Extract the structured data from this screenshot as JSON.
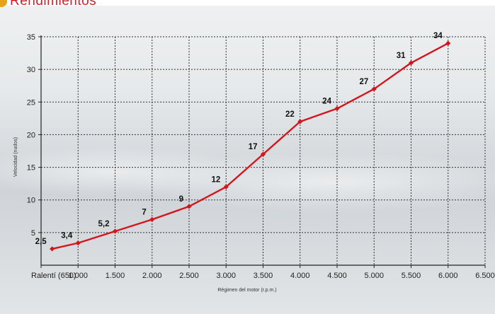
{
  "header": {
    "title": "Rendimientos",
    "icon": "orange-circle-icon",
    "title_color": "#c9242b",
    "icon_color": "#e8a21a"
  },
  "chart_data": {
    "type": "line",
    "title": "Rendimientos",
    "xlabel": "Régimen del motor (r.p.m.)",
    "ylabel": "Velocidad (nudos)",
    "x_tick_labels": [
      "Ralentí (650)",
      "1.000",
      "1.500",
      "2.000",
      "2.500",
      "3.000",
      "3.500",
      "4.000",
      "4.500",
      "5.000",
      "5.500",
      "6.000",
      "6.500"
    ],
    "x_tick_values": [
      500,
      1000,
      1500,
      2000,
      2500,
      3000,
      3500,
      4000,
      4500,
      5000,
      5500,
      6000,
      6500
    ],
    "y_ticks": [
      5,
      10,
      15,
      20,
      25,
      30,
      35
    ],
    "xlim": [
      500,
      6500
    ],
    "ylim": [
      0,
      35
    ],
    "grid": true,
    "line_color": "#d3151d",
    "series": [
      {
        "x": [
          650,
          1000,
          1500,
          2000,
          2500,
          3000,
          3500,
          4000,
          4500,
          5000,
          5500,
          6000
        ],
        "values": [
          2.5,
          3.4,
          5.2,
          7,
          9,
          12,
          17,
          22,
          24,
          27,
          31,
          34
        ],
        "labels": [
          "2,5",
          "3,4",
          "5,2",
          "7",
          "9",
          "12",
          "17",
          "22",
          "24",
          "27",
          "31",
          "34"
        ]
      }
    ]
  }
}
